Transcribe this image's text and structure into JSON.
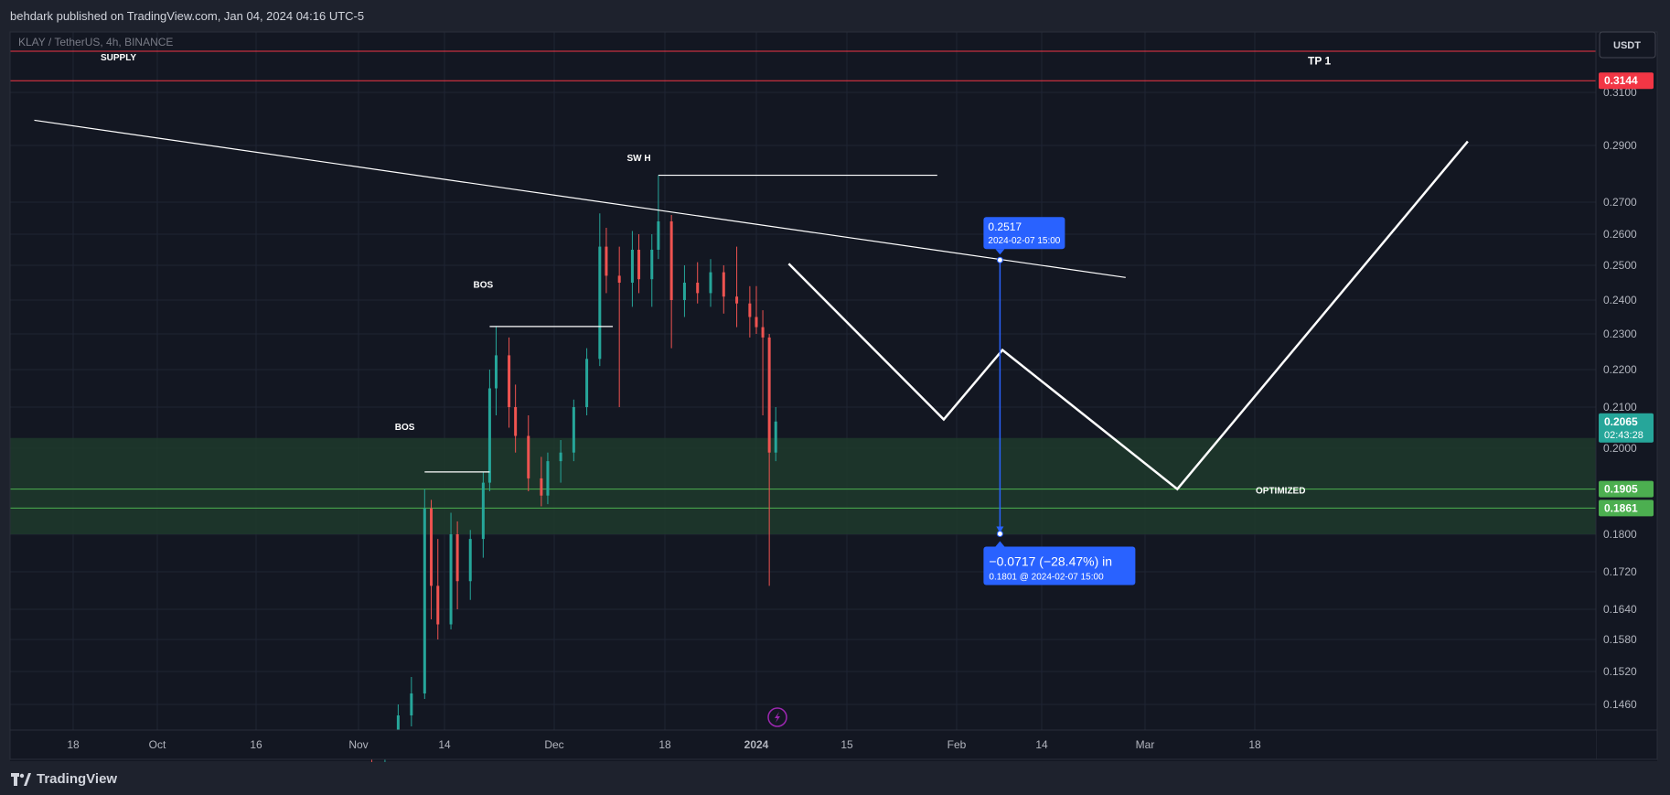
{
  "header": {
    "published_text": "behdark published on TradingView.com, Jan 04, 2024 04:16 UTC-5"
  },
  "footer": {
    "brand": "TradingView"
  },
  "colors": {
    "background": "#131722",
    "bull": "#26a69a",
    "bear": "#ef5350",
    "zone": "#1e3a2b",
    "blue": "#2962ff",
    "supply_line": "#f23645",
    "demand_line": "#4caf50"
  },
  "chart_data": {
    "type": "candlestick",
    "symbol_label": "KLAY / TetherUS, 4h, BINANCE",
    "quote_label": "USDT",
    "y_ticks": [
      "0.3100",
      "0.2900",
      "0.2700",
      "0.2600",
      "0.2500",
      "0.2400",
      "0.2300",
      "0.2200",
      "0.2100",
      "0.2000",
      "0.1800",
      "0.1720",
      "0.1640",
      "0.1580",
      "0.1520",
      "0.1460"
    ],
    "y_tick_values": [
      0.31,
      0.29,
      0.27,
      0.26,
      0.25,
      0.24,
      0.23,
      0.22,
      0.21,
      0.2,
      0.18,
      0.172,
      0.164,
      0.158,
      0.152,
      0.146
    ],
    "x_ticks": [
      "18",
      "Oct",
      "16",
      "Nov",
      "14",
      "Dec",
      "18",
      "2024",
      "15",
      "Feb",
      "14",
      "Mar",
      "18"
    ],
    "x_tick_dates": [
      "2023-09-18",
      "2023-10-01",
      "2023-10-16",
      "2023-11-01",
      "2023-11-14",
      "2023-12-01",
      "2023-12-18",
      "2024-01-01",
      "2024-01-15",
      "2024-02-01",
      "2024-02-14",
      "2024-03-01",
      "2024-03-18"
    ],
    "x_tick_bold": [
      "2024"
    ],
    "price_labels": [
      {
        "price": 0.3144,
        "text": "0.3144",
        "color": "#f23645"
      },
      {
        "price": 0.2065,
        "text": "0.2065",
        "sub": "02:43:28",
        "color": "#26a69a"
      },
      {
        "price": 0.1905,
        "text": "0.1905",
        "color": "#4caf50"
      },
      {
        "price": 0.1861,
        "text": "0.1861",
        "color": "#4caf50"
      }
    ],
    "horizontal_levels": [
      {
        "price": 0.3255,
        "color": "#f23645"
      },
      {
        "price": 0.3144,
        "color": "#f23645"
      },
      {
        "price": 0.1905,
        "color": "#4caf50"
      },
      {
        "price": 0.1861,
        "color": "#4caf50"
      }
    ],
    "demand_zone": {
      "top": 0.2025,
      "bottom": 0.18
    },
    "annotations": [
      {
        "text": "SUPPLY",
        "date": "2023-09-25",
        "price": 0.322
      },
      {
        "text": "TP 1",
        "date": "2024-03-28",
        "price": 0.3205
      },
      {
        "text": "SW H",
        "date": "2023-12-14",
        "price": 0.2845
      },
      {
        "text": "BOS",
        "date": "2023-11-20",
        "price": 0.2435
      },
      {
        "text": "BOS",
        "date": "2023-11-08",
        "price": 0.2045
      },
      {
        "text": "BOS",
        "date": "2023-10-17",
        "price": 0.1375
      },
      {
        "text": "OPTIMIZED",
        "date": "2024-03-22",
        "price": 0.1895
      }
    ],
    "measure": {
      "start_price": 0.2517,
      "start_date": "2024-02-07 15:00",
      "end_price": 0.1801,
      "end_date": "2024-02-07 15:00",
      "label_top_value": "0.2517",
      "label_top_date": "2024-02-07 15:00",
      "label_bottom_main": "−0.0717 (−28.47%) in",
      "label_bottom_sub": "0.1801 @ 2024-02-07  15:00"
    },
    "trendline": {
      "from": {
        "date": "2023-09-12",
        "price": 0.2995
      },
      "to": {
        "date": "2024-02-27",
        "price": 0.2465
      }
    },
    "bos_lines": [
      {
        "from": {
          "date": "2023-11-11",
          "price": 0.1945
        },
        "to": {
          "date": "2023-11-21",
          "price": 0.1945
        }
      },
      {
        "from": {
          "date": "2023-11-21",
          "price": 0.2322
        },
        "to": {
          "date": "2023-12-10",
          "price": 0.2322
        }
      },
      {
        "from": {
          "date": "2023-12-17",
          "price": 0.2795
        },
        "to": {
          "date": "2024-01-29",
          "price": 0.2795
        }
      }
    ],
    "projection_path": [
      {
        "date": "2024-01-06",
        "price": 0.2505
      },
      {
        "date": "2024-01-30",
        "price": 0.207
      },
      {
        "date": "2024-02-08",
        "price": 0.2255
      },
      {
        "date": "2024-03-06",
        "price": 0.1905
      },
      {
        "date": "2024-04-20",
        "price": 0.2915
      }
    ],
    "candles": [
      [
        "2023-11-03",
        0.138,
        0.1385,
        0.1355,
        0.136
      ],
      [
        "2023-11-05",
        0.136,
        0.14,
        0.1355,
        0.1395
      ],
      [
        "2023-11-07",
        0.1395,
        0.146,
        0.1385,
        0.144
      ],
      [
        "2023-11-09",
        0.144,
        0.151,
        0.142,
        0.148
      ],
      [
        "2023-11-11",
        0.148,
        0.1905,
        0.147,
        0.186
      ],
      [
        "2023-11-12",
        0.186,
        0.188,
        0.162,
        0.169
      ],
      [
        "2023-11-13",
        0.169,
        0.179,
        0.158,
        0.161
      ],
      [
        "2023-11-15",
        0.161,
        0.185,
        0.16,
        0.18
      ],
      [
        "2023-11-16",
        0.18,
        0.183,
        0.164,
        0.17
      ],
      [
        "2023-11-18",
        0.17,
        0.181,
        0.166,
        0.179
      ],
      [
        "2023-11-20",
        0.179,
        0.1945,
        0.175,
        0.192
      ],
      [
        "2023-11-21",
        0.192,
        0.22,
        0.19,
        0.215
      ],
      [
        "2023-11-22",
        0.215,
        0.2322,
        0.208,
        0.224
      ],
      [
        "2023-11-24",
        0.224,
        0.229,
        0.205,
        0.21
      ],
      [
        "2023-11-25",
        0.21,
        0.216,
        0.199,
        0.203
      ],
      [
        "2023-11-27",
        0.203,
        0.208,
        0.19,
        0.193
      ],
      [
        "2023-11-29",
        0.193,
        0.198,
        0.1865,
        0.189
      ],
      [
        "2023-11-30",
        0.189,
        0.199,
        0.187,
        0.197
      ],
      [
        "2023-12-02",
        0.197,
        0.202,
        0.192,
        0.199
      ],
      [
        "2023-12-04",
        0.199,
        0.212,
        0.197,
        0.21
      ],
      [
        "2023-12-06",
        0.21,
        0.226,
        0.208,
        0.223
      ],
      [
        "2023-12-08",
        0.223,
        0.2665,
        0.221,
        0.256
      ],
      [
        "2023-12-09",
        0.256,
        0.262,
        0.242,
        0.247
      ],
      [
        "2023-12-11",
        0.247,
        0.256,
        0.21,
        0.245
      ],
      [
        "2023-12-13",
        0.245,
        0.261,
        0.238,
        0.255
      ],
      [
        "2023-12-14",
        0.255,
        0.26,
        0.242,
        0.246
      ],
      [
        "2023-12-16",
        0.246,
        0.26,
        0.238,
        0.255
      ],
      [
        "2023-12-17",
        0.255,
        0.2795,
        0.252,
        0.264
      ],
      [
        "2023-12-19",
        0.264,
        0.266,
        0.226,
        0.24
      ],
      [
        "2023-12-21",
        0.24,
        0.25,
        0.235,
        0.245
      ],
      [
        "2023-12-23",
        0.245,
        0.251,
        0.239,
        0.242
      ],
      [
        "2023-12-25",
        0.242,
        0.252,
        0.238,
        0.248
      ],
      [
        "2023-12-27",
        0.248,
        0.25,
        0.236,
        0.241
      ],
      [
        "2023-12-29",
        0.241,
        0.256,
        0.232,
        0.239
      ],
      [
        "2023-12-31",
        0.239,
        0.244,
        0.229,
        0.235
      ],
      [
        "2024-01-01",
        0.235,
        0.244,
        0.23,
        0.232
      ],
      [
        "2024-01-02",
        0.232,
        0.237,
        0.208,
        0.229
      ],
      [
        "2024-01-03",
        0.229,
        0.23,
        0.169,
        0.199
      ],
      [
        "2024-01-04",
        0.199,
        0.21,
        0.197,
        0.2065
      ]
    ]
  }
}
